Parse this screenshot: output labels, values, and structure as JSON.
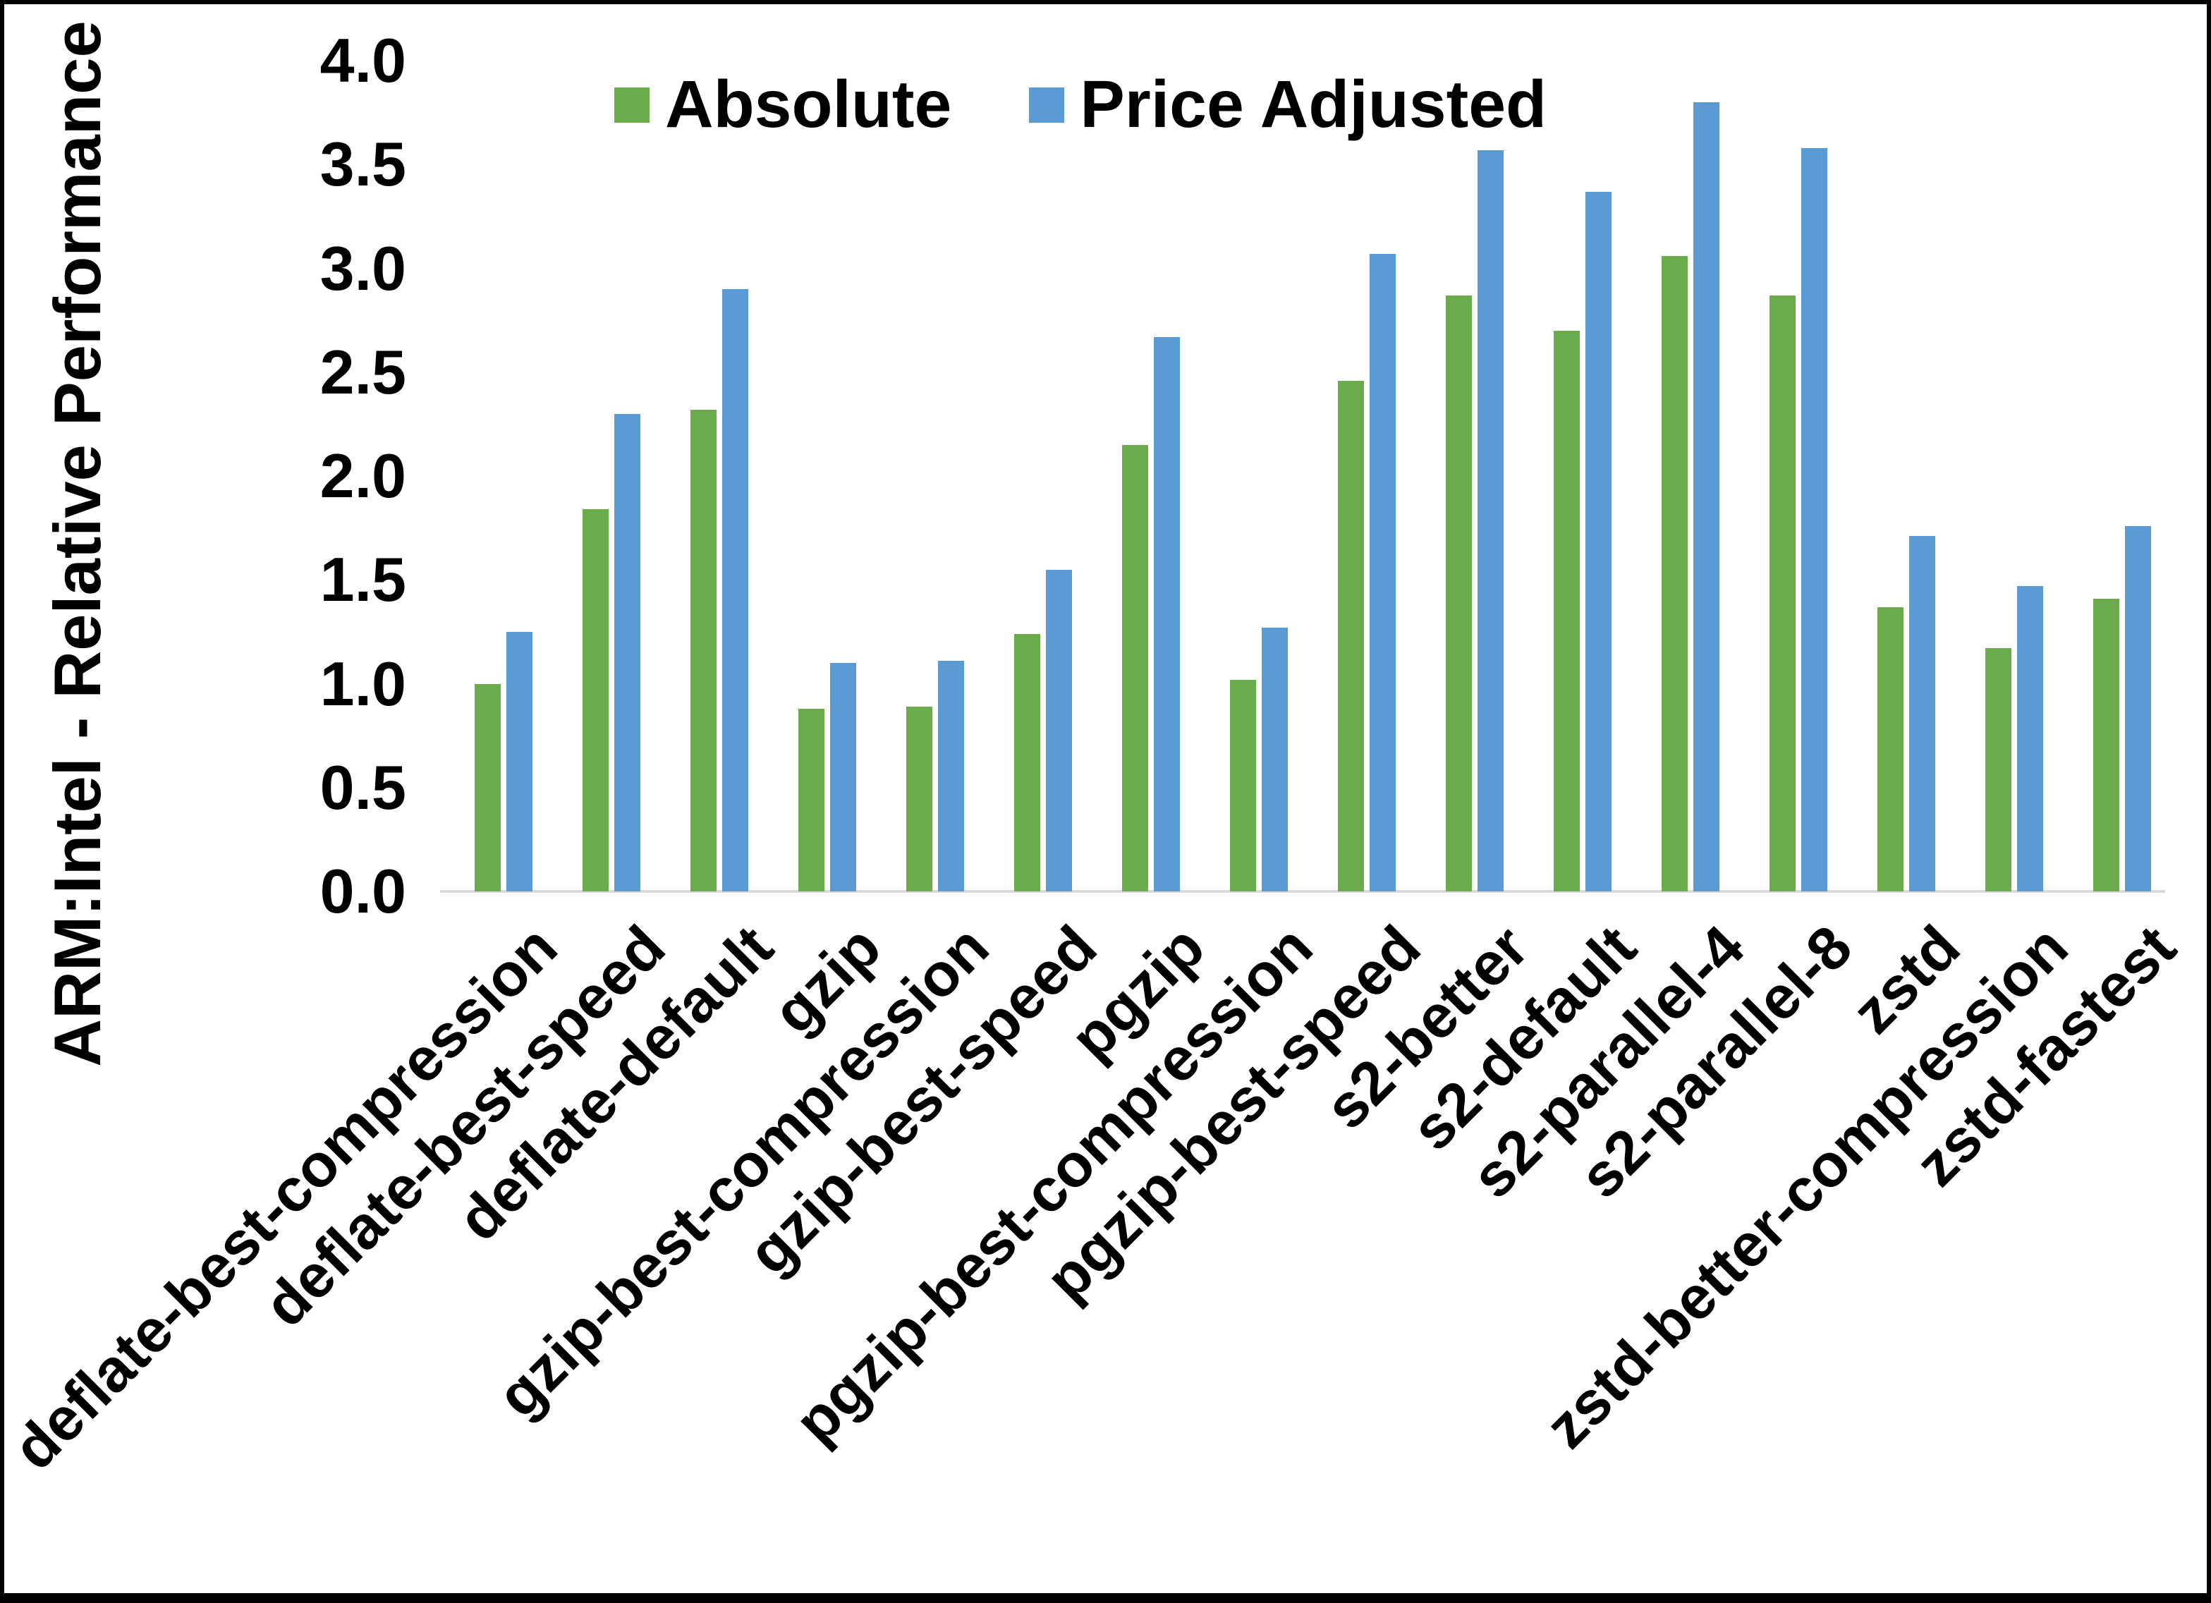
{
  "chart_data": {
    "type": "bar",
    "title": "",
    "xlabel": "",
    "ylabel": "ARM:Intel - Relative Performance",
    "ylim": [
      0.0,
      4.0
    ],
    "ytick_step": 0.5,
    "ytick_labels": [
      "0.0",
      "0.5",
      "1.0",
      "1.5",
      "2.0",
      "2.5",
      "3.0",
      "3.5",
      "4.0"
    ],
    "grid": false,
    "legend_position": "top-center",
    "categories": [
      "deflate-best-compression",
      "deflate-best-speed",
      "deflate-default",
      "gzip",
      "gzip-best-compression",
      "gzip-best-speed",
      "pgzip",
      "pgzip-best-compression",
      "pgzip-best-speed",
      "s2-better",
      "s2-default",
      "s2-parallel-4",
      "s2-parallel-8",
      "zstd",
      "zstd-better-compression",
      "zstd-fastest"
    ],
    "series": [
      {
        "name": "Absolute",
        "color": "#6aab4c",
        "values": [
          1.0,
          1.84,
          2.32,
          0.88,
          0.89,
          1.24,
          2.15,
          1.02,
          2.46,
          2.87,
          2.7,
          3.06,
          2.87,
          1.37,
          1.17,
          1.41
        ]
      },
      {
        "name": "Price Adjusted",
        "color": "#5b9bd5",
        "values": [
          1.25,
          2.3,
          2.9,
          1.1,
          1.11,
          1.55,
          2.67,
          1.27,
          3.07,
          3.57,
          3.37,
          3.8,
          3.58,
          1.71,
          1.47,
          1.76
        ]
      }
    ],
    "axis_line_color": "#d9d9d9",
    "text_color": "#000000"
  }
}
